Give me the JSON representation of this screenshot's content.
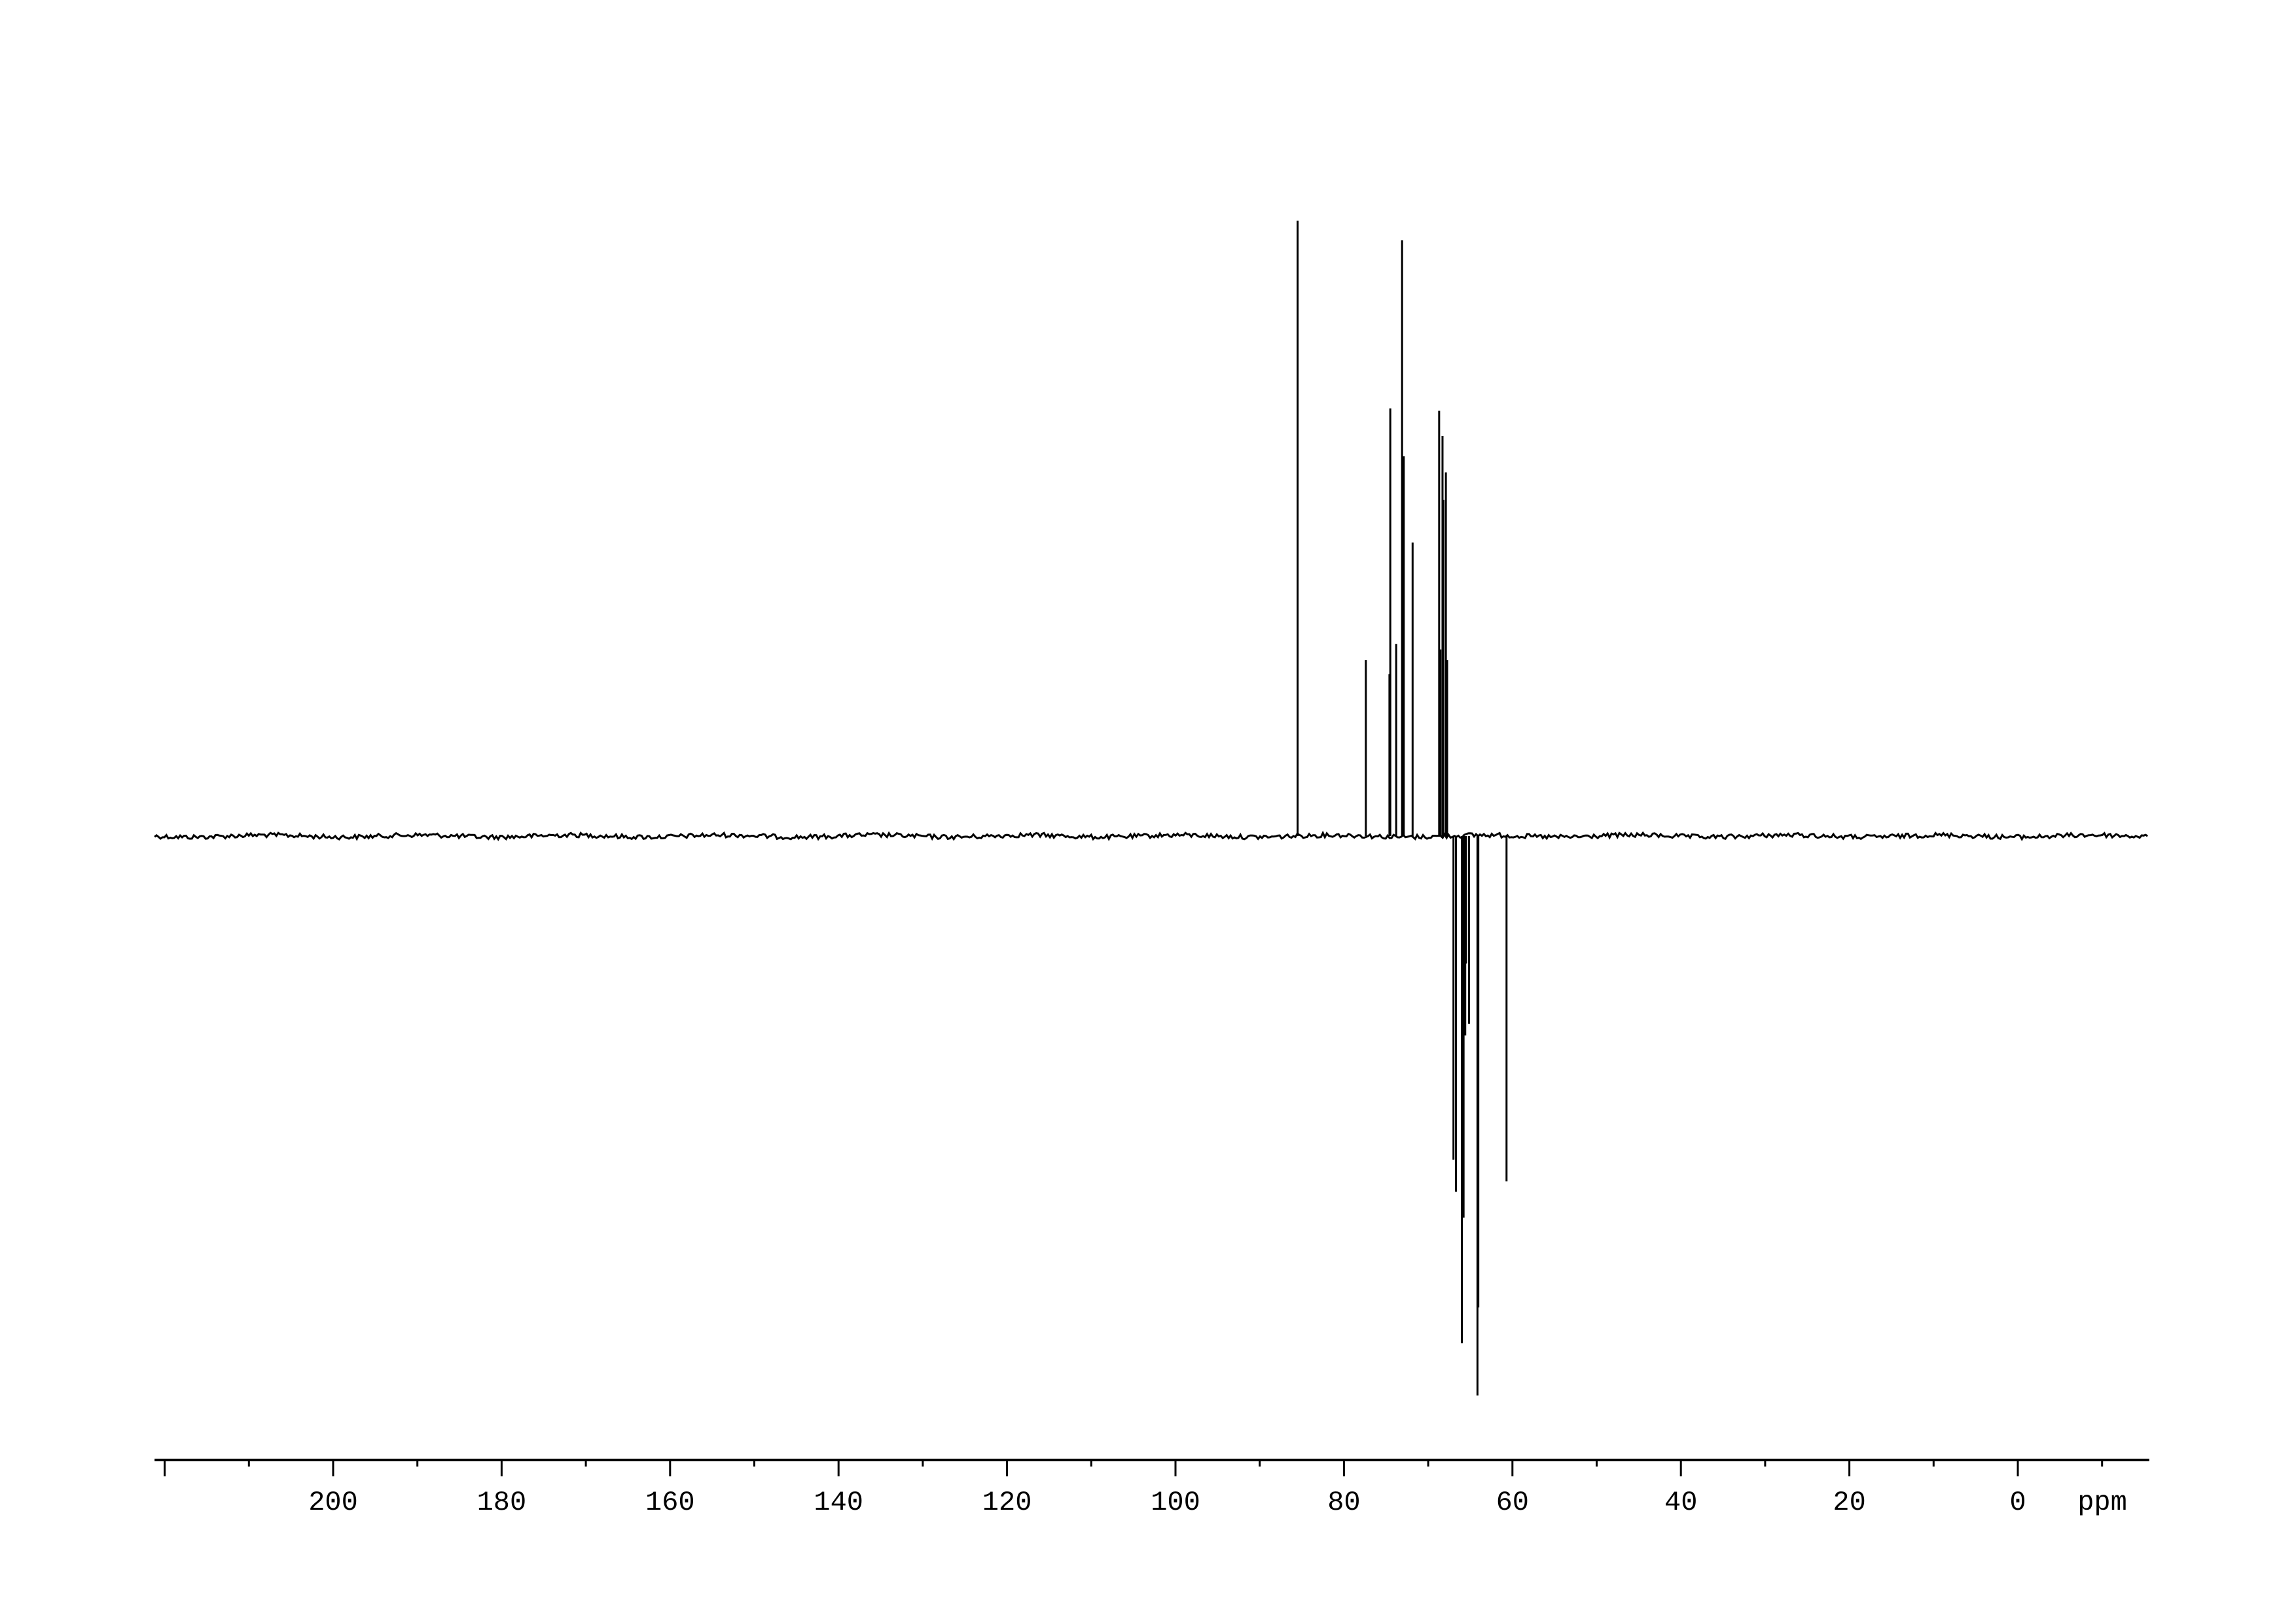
{
  "chart_data": {
    "type": "line",
    "title": "",
    "xlabel": "ppm",
    "ylabel": "",
    "x_reversed": true,
    "xlim": [
      221.2,
      -15.6
    ],
    "ylim": [
      -100,
      100
    ],
    "grid": false,
    "x_major_ticks": [
      200,
      180,
      160,
      140,
      120,
      100,
      80,
      60,
      40,
      20,
      0
    ],
    "x_tick_labels": [
      "200",
      "180",
      "160",
      "140",
      "120",
      "100",
      "80",
      "60",
      "40",
      "20",
      "0"
    ],
    "x_unit_label": "ppm",
    "line_color": "#000000",
    "peaks": [
      {
        "ppm": 85.5,
        "intensity": 100
      },
      {
        "ppm": 77.4,
        "intensity": 28.6
      },
      {
        "ppm": 74.6,
        "intensity": 26.3
      },
      {
        "ppm": 74.5,
        "intensity": 69.5
      },
      {
        "ppm": 73.8,
        "intensity": 31.2
      },
      {
        "ppm": 73.1,
        "intensity": 96.8
      },
      {
        "ppm": 72.9,
        "intensity": 61.7
      },
      {
        "ppm": 71.85,
        "intensity": 47.7
      },
      {
        "ppm": 68.7,
        "intensity": 69.1
      },
      {
        "ppm": 68.55,
        "intensity": 30.3
      },
      {
        "ppm": 68.3,
        "intensity": 65.0
      },
      {
        "ppm": 68.2,
        "intensity": 54.6
      },
      {
        "ppm": 67.9,
        "intensity": 59.1
      },
      {
        "ppm": 67.75,
        "intensity": 28.6
      },
      {
        "ppm": 67.0,
        "intensity": -52.6
      },
      {
        "ppm": 66.7,
        "intensity": -57.8
      },
      {
        "ppm": 66.0,
        "intensity": -82.4
      },
      {
        "ppm": 65.8,
        "intensity": -62.0
      },
      {
        "ppm": 65.6,
        "intensity": -32.4
      },
      {
        "ppm": 65.5,
        "intensity": -20.7
      },
      {
        "ppm": 65.15,
        "intensity": -30.5
      },
      {
        "ppm": 64.15,
        "intensity": -90.9
      },
      {
        "ppm": 64.05,
        "intensity": -76.6
      },
      {
        "ppm": 60.7,
        "intensity": -56.1
      }
    ]
  }
}
